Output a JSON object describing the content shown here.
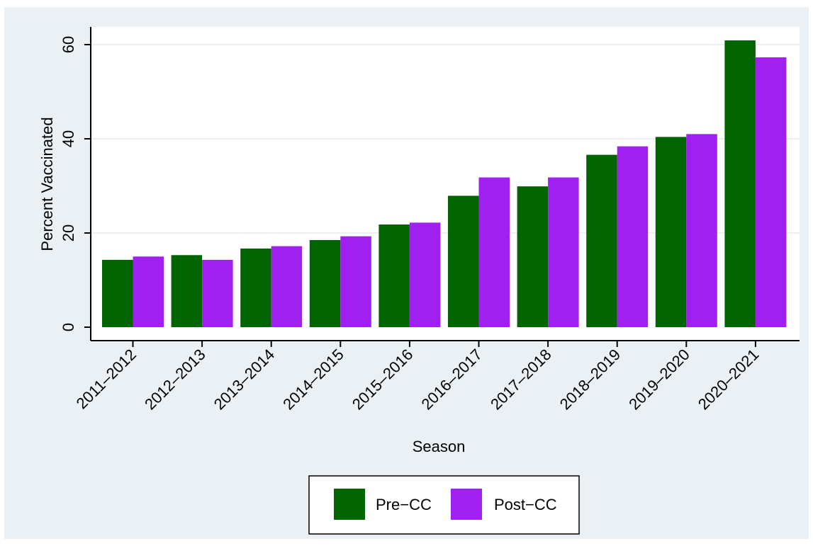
{
  "colors": {
    "outer_bg": "#eaf0f3",
    "plot_bg": "#ffffff",
    "gridline": "#eaf0f3",
    "axis": "#000000",
    "series": [
      "#006400",
      "#a020f0"
    ]
  },
  "chart_data": {
    "type": "bar",
    "title": "",
    "xlabel": "Season",
    "ylabel": "Percent Vaccinated",
    "categories": [
      "2011–2012",
      "2012–2013",
      "2013–2014",
      "2014–2015",
      "2015–2016",
      "2016–2017",
      "2017–2018",
      "2018–2019",
      "2019–2020",
      "2020–2021"
    ],
    "series": [
      {
        "name": "Pre−CC",
        "color": "#006400",
        "values": [
          14.3,
          15.3,
          16.7,
          18.5,
          21.8,
          27.9,
          29.9,
          36.6,
          40.4,
          60.9
        ]
      },
      {
        "name": "Post−CC",
        "color": "#a020f0",
        "values": [
          15.0,
          14.3,
          17.2,
          19.3,
          22.2,
          31.8,
          31.8,
          38.4,
          41.0,
          57.3
        ]
      }
    ],
    "yticks": [
      0,
      20,
      40,
      60
    ],
    "ylim": [
      0,
      62
    ],
    "grid": true,
    "legend_position": "bottom-center"
  }
}
